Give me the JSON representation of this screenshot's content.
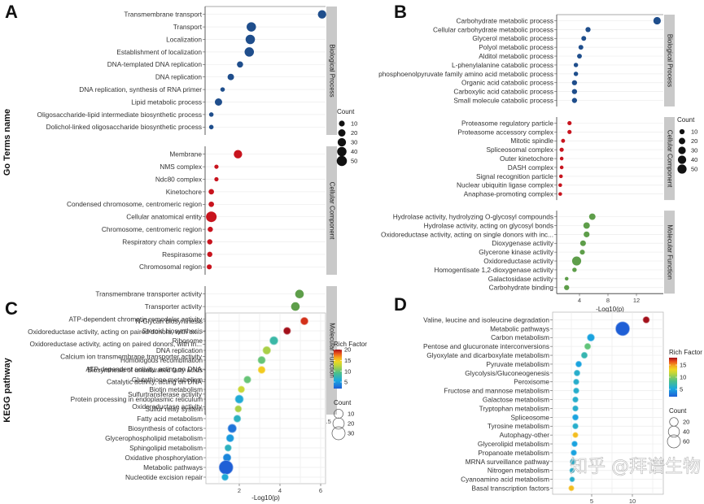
{
  "chart_data": [
    {
      "id": "A",
      "type": "scatter",
      "panel_label": "A",
      "ylabel": "Go Terms name",
      "xlabel": "-Log10(p)",
      "xlim": [
        1,
        13
      ],
      "xticks": [
        2.5,
        5.0,
        7.5,
        10.0,
        12.5
      ],
      "xtick_labels": [
        "2.5",
        "5.0",
        "7.5",
        "10.0",
        "12.5"
      ],
      "grid": "horizontal",
      "legend": {
        "title": "Count",
        "placement": "right",
        "sizes": [
          10,
          20,
          30,
          40,
          50
        ],
        "labels": [
          "10",
          "20",
          "30",
          "40",
          "50"
        ],
        "color": "#111111"
      },
      "groups": [
        {
          "name": "Biological Process",
          "color": "#1f4e8c",
          "terms": [
            {
              "label": "Transmembrane transport",
              "x": 12.2,
              "count": 30
            },
            {
              "label": "Transport",
              "x": 5.3,
              "count": 40
            },
            {
              "label": "Localization",
              "x": 5.2,
              "count": 40
            },
            {
              "label": "Establishment of localization",
              "x": 5.1,
              "count": 40
            },
            {
              "label": "DNA-templated DNA replication",
              "x": 4.2,
              "count": 12
            },
            {
              "label": "DNA replication",
              "x": 3.3,
              "count": 14
            },
            {
              "label": "DNA replication, synthesis of RNA primer",
              "x": 2.5,
              "count": 4
            },
            {
              "label": "Lipid metabolic process",
              "x": 2.1,
              "count": 20
            },
            {
              "label": "Oligosaccharide-lipid intermediate biosynthetic process",
              "x": 1.4,
              "count": 4
            },
            {
              "label": "Dolichol-linked oligosaccharide biosynthetic process",
              "x": 1.4,
              "count": 4
            }
          ]
        },
        {
          "name": "Cellular Component",
          "color": "#c8141e",
          "terms": [
            {
              "label": "Membrane",
              "x": 4.0,
              "count": 30
            },
            {
              "label": "NMS complex",
              "x": 1.9,
              "count": 3
            },
            {
              "label": "Ndc80 complex",
              "x": 1.9,
              "count": 3
            },
            {
              "label": "Kinetochore",
              "x": 1.4,
              "count": 8
            },
            {
              "label": "Condensed chromosome, centromeric region",
              "x": 1.4,
              "count": 8
            },
            {
              "label": "Cellular anatomical entity",
              "x": 1.4,
              "count": 55
            },
            {
              "label": "Chromosome, centromeric region",
              "x": 1.3,
              "count": 7
            },
            {
              "label": "Respiratory chain complex",
              "x": 1.25,
              "count": 7
            },
            {
              "label": "Respirasome",
              "x": 1.25,
              "count": 7
            },
            {
              "label": "Chromosomal region",
              "x": 1.2,
              "count": 6
            }
          ]
        },
        {
          "name": "Molecular Function",
          "color": "#5e9e4a",
          "terms": [
            {
              "label": "Transmembrane transporter activity",
              "x": 10.0,
              "count": 32
            },
            {
              "label": "Transporter activity",
              "x": 9.6,
              "count": 32
            },
            {
              "label": "ATP-dependent chromatin remodeler activity",
              "x": 2.0,
              "count": 8
            },
            {
              "label": "Oxidoreductase activity, acting on paired donors, with ox...",
              "x": 2.0,
              "count": 4
            },
            {
              "label": "Oxidoreductase activity, acting on paired donors, with in...",
              "x": 1.9,
              "count": 12
            },
            {
              "label": "Calcium ion transmembrane transporter activity",
              "x": 1.6,
              "count": 5
            },
            {
              "label": "ATP-dependent activity, acting on DNA",
              "x": 1.6,
              "count": 10
            },
            {
              "label": "Catalytic activity, acting on DNA",
              "x": 1.4,
              "count": 10
            },
            {
              "label": "Sulfurtransferase activity",
              "x": 1.4,
              "count": 4
            },
            {
              "label": "Oxidoreductase activity",
              "x": 1.45,
              "count": 34
            }
          ]
        }
      ]
    },
    {
      "id": "B",
      "type": "scatter",
      "panel_label": "B",
      "ylabel": "",
      "xlabel": "-Log10(p)",
      "xlim": [
        0.8,
        16
      ],
      "xticks": [
        4,
        8,
        12
      ],
      "xtick_labels": [
        "4",
        "8",
        "12"
      ],
      "grid": "horizontal",
      "legend": {
        "title": "Count",
        "placement": "right",
        "sizes": [
          10,
          20,
          30,
          40,
          50
        ],
        "labels": [
          "10",
          "20",
          "30",
          "40",
          "50"
        ],
        "color": "#111111"
      },
      "groups": [
        {
          "name": "Biological Process",
          "color": "#1f4e8c",
          "terms": [
            {
              "label": "Carbohydrate metabolic process",
              "x": 14.9,
              "count": 30
            },
            {
              "label": "Cellular carbohydrate metabolic process",
              "x": 5.2,
              "count": 10
            },
            {
              "label": "Glycerol metabolic process",
              "x": 4.6,
              "count": 8
            },
            {
              "label": "Polyol metabolic process",
              "x": 4.2,
              "count": 8
            },
            {
              "label": "Alditol metabolic process",
              "x": 4.0,
              "count": 8
            },
            {
              "label": "L-phenylalanine catabolic process",
              "x": 3.5,
              "count": 6
            },
            {
              "label": "phosphoenolpyruvate family amino acid metabolic process",
              "x": 3.5,
              "count": 6
            },
            {
              "label": "Organic acid catabolic process",
              "x": 3.3,
              "count": 10
            },
            {
              "label": "Carboxylic acid catabolic process",
              "x": 3.3,
              "count": 10
            },
            {
              "label": "Small molecule catabolic process",
              "x": 3.3,
              "count": 10
            }
          ]
        },
        {
          "name": "Cellular Component",
          "color": "#c8141e",
          "terms": [
            {
              "label": "Proteasome regulatory particle",
              "x": 2.6,
              "count": 5
            },
            {
              "label": "Proteasome accessory complex",
              "x": 2.6,
              "count": 5
            },
            {
              "label": "Mitotic spindle",
              "x": 1.7,
              "count": 4
            },
            {
              "label": "Spliceosomal complex",
              "x": 1.5,
              "count": 5
            },
            {
              "label": "Outer kinetochore",
              "x": 1.5,
              "count": 3
            },
            {
              "label": "DASH complex",
              "x": 1.5,
              "count": 3
            },
            {
              "label": "Signal recognition particle",
              "x": 1.4,
              "count": 3
            },
            {
              "label": "Nuclear ubiquitin ligase complex",
              "x": 1.3,
              "count": 3
            },
            {
              "label": "Anaphase-promoting complex",
              "x": 1.3,
              "count": 3
            }
          ]
        },
        {
          "name": "Molecular Function",
          "color": "#5e9e4a",
          "terms": [
            {
              "label": "Hydrolase activity, hydrolyzing O-glycosyl compounds",
              "x": 5.8,
              "count": 20
            },
            {
              "label": "Hydrolase activity, acting on glycosyl bonds",
              "x": 5.0,
              "count": 20
            },
            {
              "label": "Oxidoreductase activity, acting on single donors with inc...",
              "x": 5.0,
              "count": 15
            },
            {
              "label": "Dioxygenase activity",
              "x": 4.5,
              "count": 14
            },
            {
              "label": "Glycerone kinase activity",
              "x": 4.4,
              "count": 9
            },
            {
              "label": "Oxidoreductase activity",
              "x": 3.6,
              "count": 50
            },
            {
              "label": "Homogentisate 1,2-dioxygenase activity",
              "x": 3.3,
              "count": 6
            },
            {
              "label": "Galactosidase activity",
              "x": 2.2,
              "count": 3
            },
            {
              "label": "Carbohydrate binding",
              "x": 2.2,
              "count": 10
            }
          ]
        }
      ]
    },
    {
      "id": "C",
      "type": "scatter",
      "panel_label": "C",
      "ylabel": "KEGG pathway",
      "xlabel": "-Log10(p)",
      "xlim": [
        0.35,
        6.3
      ],
      "xticks": [
        2,
        4,
        6
      ],
      "xtick_labels": [
        "2",
        "4",
        "6"
      ],
      "grid": "both",
      "color_legend": {
        "title": "Rich Factor",
        "placement": "right",
        "ticks": [
          5,
          10,
          15,
          20
        ],
        "range": [
          2,
          20
        ]
      },
      "legend": {
        "title": "Count",
        "placement": "right",
        "sizes": [
          10,
          20,
          30
        ],
        "labels": [
          "10",
          "20",
          "30"
        ]
      },
      "terms": [
        {
          "label": "N-Glycan biosynthesis",
          "x": 5.2,
          "count": 5,
          "rich": 19
        },
        {
          "label": "Steroid biosynthesis",
          "x": 4.35,
          "count": 4,
          "rich": 20
        },
        {
          "label": "Ribosome",
          "x": 3.7,
          "count": 7,
          "rich": 8
        },
        {
          "label": "DNA replication",
          "x": 3.35,
          "count": 6,
          "rich": 12
        },
        {
          "label": "Homologous recombination",
          "x": 3.1,
          "count": 5,
          "rich": 10
        },
        {
          "label": "Biosynthesis of unsaturated fatty acids",
          "x": 3.1,
          "count": 4,
          "rich": 15
        },
        {
          "label": "Glutathione metabolism",
          "x": 2.4,
          "count": 4,
          "rich": 10
        },
        {
          "label": "Biotin metabolism",
          "x": 2.1,
          "count": 3,
          "rich": 13
        },
        {
          "label": "Protein processing in endoplasmic reticulum",
          "x": 2.0,
          "count": 7,
          "rich": 6
        },
        {
          "label": "Sulfur relay system",
          "x": 1.95,
          "count": 3,
          "rich": 12
        },
        {
          "label": "Fatty acid metabolism",
          "x": 1.9,
          "count": 4,
          "rich": 7
        },
        {
          "label": "Biosynthesis of cofactors",
          "x": 1.65,
          "count": 8,
          "rich": 3
        },
        {
          "label": "Glycerophospholipid metabolism",
          "x": 1.55,
          "count": 5,
          "rich": 5
        },
        {
          "label": "Sphingolipid metabolism",
          "x": 1.45,
          "count": 3,
          "rich": 7
        },
        {
          "label": "Oxidative phosphorylation",
          "x": 1.4,
          "count": 6,
          "rich": 4
        },
        {
          "label": "Metabolic pathways",
          "x": 1.35,
          "count": 35,
          "rich": 2
        },
        {
          "label": "Nucleotide excision repair",
          "x": 1.3,
          "count": 3,
          "rich": 6
        }
      ]
    },
    {
      "id": "D",
      "type": "scatter",
      "panel_label": "D",
      "ylabel": "",
      "xlabel": "-Log10(p)",
      "xlim": [
        0.2,
        12.8
      ],
      "xticks": [
        5,
        10
      ],
      "xtick_labels": [
        "5",
        "10"
      ],
      "grid": "both",
      "color_legend": {
        "title": "Rich Factor",
        "placement": "right",
        "ticks": [
          5,
          10,
          15
        ],
        "range": [
          2,
          18
        ]
      },
      "legend": {
        "title": "Count",
        "placement": "right",
        "sizes": [
          20,
          40,
          60
        ],
        "labels": [
          "20",
          "40",
          "60"
        ]
      },
      "terms": [
        {
          "label": "Valine, leucine and isoleucine degradation",
          "x": 11.7,
          "count": 8,
          "rich": 18
        },
        {
          "label": "Metabolic pathways",
          "x": 8.8,
          "count": 70,
          "rich": 2
        },
        {
          "label": "Carbon metabolism",
          "x": 4.9,
          "count": 12,
          "rich": 5
        },
        {
          "label": "Pentose and glucuronate interconversions",
          "x": 4.5,
          "count": 7,
          "rich": 9
        },
        {
          "label": "Glyoxylate and dicarboxylate metabolism",
          "x": 4.1,
          "count": 7,
          "rich": 7
        },
        {
          "label": "Pyruvate metabolism",
          "x": 3.4,
          "count": 6,
          "rich": 5
        },
        {
          "label": "Glycolysis/Gluconeogenesis",
          "x": 3.2,
          "count": 6,
          "rich": 6
        },
        {
          "label": "Peroxisome",
          "x": 3.1,
          "count": 5,
          "rich": 6
        },
        {
          "label": "Fructose and mannose metabolism",
          "x": 3.1,
          "count": 5,
          "rich": 6
        },
        {
          "label": "Galactose metabolism",
          "x": 3.0,
          "count": 5,
          "rich": 6
        },
        {
          "label": "Tryptophan metabolism",
          "x": 3.0,
          "count": 5,
          "rich": 6
        },
        {
          "label": "Spliceosome",
          "x": 3.0,
          "count": 6,
          "rich": 5
        },
        {
          "label": "Tyrosine metabolism",
          "x": 3.0,
          "count": 5,
          "rich": 6
        },
        {
          "label": "Autophagy-other",
          "x": 3.0,
          "count": 4,
          "rich": 14
        },
        {
          "label": "Glycerolipid metabolism",
          "x": 2.9,
          "count": 5,
          "rich": 5
        },
        {
          "label": "Propanoate metabolism",
          "x": 2.8,
          "count": 5,
          "rich": 5
        },
        {
          "label": "MRNA surveillance pathway",
          "x": 2.7,
          "count": 5,
          "rich": 6
        },
        {
          "label": "Nitrogen metabolism",
          "x": 2.6,
          "count": 3,
          "rich": 6
        },
        {
          "label": "Cyanoamino acid metabolism",
          "x": 2.6,
          "count": 3,
          "rich": 6
        },
        {
          "label": "Basal transcription factors",
          "x": 2.5,
          "count": 4,
          "rich": 14
        }
      ]
    }
  ],
  "watermark": "知乎 @拜谱生物"
}
